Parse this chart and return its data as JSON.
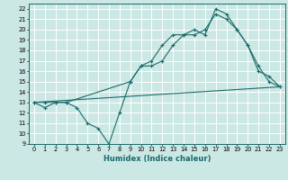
{
  "xlabel": "Humidex (Indice chaleur)",
  "bg_color": "#cce8e4",
  "line_color": "#1a6b6b",
  "grid_color": "#ffffff",
  "xlim": [
    -0.5,
    23.5
  ],
  "ylim": [
    9,
    22.5
  ],
  "xticks": [
    0,
    1,
    2,
    3,
    4,
    5,
    6,
    7,
    8,
    9,
    10,
    11,
    12,
    13,
    14,
    15,
    16,
    17,
    18,
    19,
    20,
    21,
    22,
    23
  ],
  "yticks": [
    9,
    10,
    11,
    12,
    13,
    14,
    15,
    16,
    17,
    18,
    19,
    20,
    21,
    22
  ],
  "line1_x": [
    0,
    1,
    2,
    3,
    4,
    5,
    6,
    7,
    8,
    9,
    10,
    11,
    12,
    13,
    14,
    15,
    16,
    17,
    18,
    19,
    20,
    21,
    22,
    23
  ],
  "line1_y": [
    13,
    12.5,
    13,
    13,
    12.5,
    11,
    10.5,
    9,
    12,
    15,
    16.5,
    17,
    18.5,
    19.5,
    19.5,
    20,
    19.5,
    22,
    21.5,
    20,
    18.5,
    16.5,
    15,
    14.5
  ],
  "line2_x": [
    0,
    1,
    2,
    3,
    9,
    10,
    11,
    12,
    13,
    14,
    15,
    16,
    17,
    18,
    19,
    20,
    21,
    22,
    23
  ],
  "line2_y": [
    13,
    13,
    13,
    13,
    15,
    16.5,
    16.5,
    17,
    18.5,
    19.5,
    19.5,
    20,
    21.5,
    21,
    20,
    18.5,
    16,
    15.5,
    14.5
  ],
  "line3_x": [
    0,
    23
  ],
  "line3_y": [
    13,
    14.5
  ],
  "xlabel_fontsize": 6.0,
  "tick_fontsize": 4.8
}
